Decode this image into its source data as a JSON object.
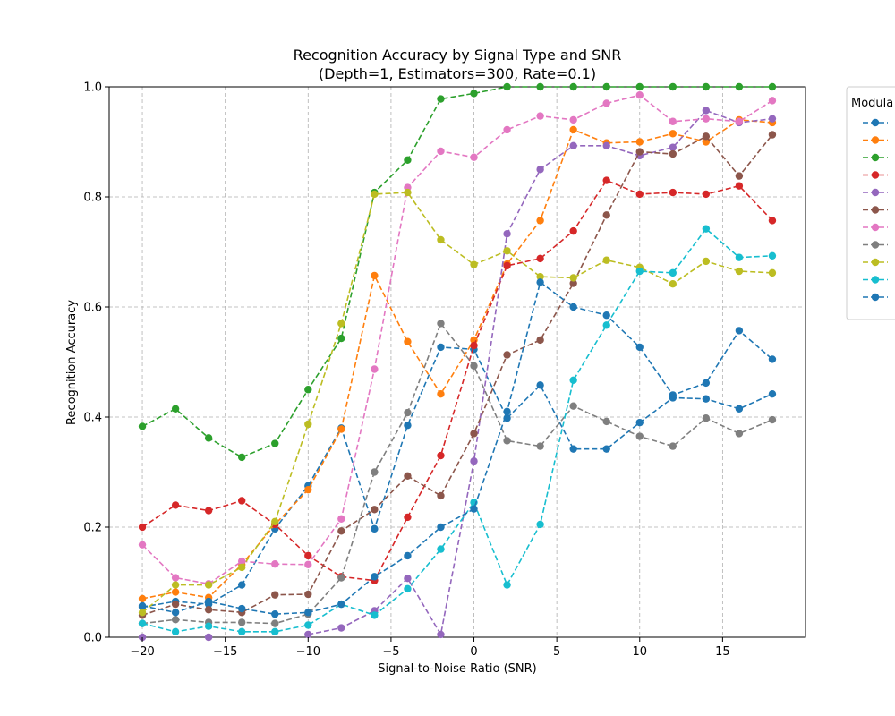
{
  "chart_data": {
    "type": "line",
    "title": "Recognition Accuracy by Signal Type and SNR",
    "subtitle": "(Depth=1, Estimators=300, Rate=0.1)",
    "xlabel": "Signal-to-Noise Ratio (SNR)",
    "ylabel": "Recognition Accuracy",
    "xlim": [
      -22,
      20
    ],
    "ylim": [
      0.0,
      1.0
    ],
    "xticks": [
      -20,
      -15,
      -10,
      -5,
      0,
      5,
      10,
      15
    ],
    "yticks": [
      0.0,
      0.2,
      0.4,
      0.6,
      0.8,
      1.0
    ],
    "xtick_labels": [
      "−20",
      "−15",
      "−10",
      "−5",
      "0",
      "5",
      "10",
      "15"
    ],
    "ytick_labels": [
      "0.0",
      "0.2",
      "0.4",
      "0.6",
      "0.8",
      "1.0"
    ],
    "grid": true,
    "legend": {
      "title": "Modula",
      "placement": "right-outside-top",
      "entries": [
        "",
        "",
        "",
        "",
        "",
        "",
        "",
        "",
        "",
        "",
        ""
      ]
    },
    "x": [
      -20,
      -18,
      -16,
      -14,
      -12,
      -10,
      -8,
      -6,
      -4,
      -2,
      0,
      2,
      4,
      6,
      8,
      10,
      12,
      14,
      16,
      18
    ],
    "series": [
      {
        "color": "#1f77b4",
        "values": [
          0.055,
          0.065,
          0.06,
          0.095,
          0.197,
          0.275,
          0.38,
          0.197,
          0.385,
          0.527,
          0.523,
          0.398,
          0.458,
          0.342,
          0.342,
          0.39,
          0.435,
          0.433,
          0.415,
          0.442
        ]
      },
      {
        "color": "#ff7f0e",
        "values": [
          0.07,
          0.082,
          0.072,
          0.132,
          0.205,
          0.268,
          0.378,
          0.657,
          0.537,
          0.442,
          0.54,
          0.678,
          0.757,
          0.922,
          0.898,
          0.9,
          0.915,
          0.9,
          0.94,
          0.935
        ]
      },
      {
        "color": "#2ca02c",
        "values": [
          0.383,
          0.415,
          0.362,
          0.327,
          0.352,
          0.45,
          0.543,
          0.808,
          0.867,
          0.978,
          0.988,
          1.0,
          1.0,
          1.0,
          1.0,
          1.0,
          1.0,
          1.0,
          1.0,
          1.0
        ]
      },
      {
        "color": "#d62728",
        "values": [
          0.2,
          0.24,
          0.23,
          0.248,
          0.205,
          0.148,
          0.11,
          0.103,
          0.218,
          0.33,
          0.53,
          0.675,
          0.688,
          0.738,
          0.83,
          0.805,
          0.808,
          0.805,
          0.82,
          0.757
        ]
      },
      {
        "color": "#9467bd",
        "values": [
          0.0,
          null,
          0.0,
          null,
          null,
          0.005,
          0.017,
          0.048,
          0.107,
          0.005,
          0.32,
          0.733,
          0.85,
          0.893,
          0.893,
          0.875,
          0.89,
          0.957,
          0.935,
          0.942
        ]
      },
      {
        "color": "#8c564b",
        "values": [
          0.04,
          0.06,
          0.05,
          0.045,
          0.077,
          0.078,
          0.193,
          0.232,
          0.293,
          0.257,
          0.37,
          0.513,
          0.54,
          0.643,
          0.767,
          0.882,
          0.878,
          0.91,
          0.838,
          0.913
        ]
      },
      {
        "color": "#e377c2",
        "values": [
          0.168,
          0.108,
          0.097,
          0.138,
          0.133,
          0.132,
          0.215,
          0.487,
          0.817,
          0.883,
          0.872,
          0.922,
          0.947,
          0.94,
          0.97,
          0.985,
          0.937,
          0.942,
          0.937,
          0.975
        ]
      },
      {
        "color": "#7f7f7f",
        "values": [
          0.025,
          0.032,
          0.027,
          0.027,
          0.025,
          0.042,
          0.108,
          0.3,
          0.408,
          0.57,
          0.493,
          0.357,
          0.347,
          0.42,
          0.392,
          0.365,
          0.347,
          0.398,
          0.37,
          0.395
        ]
      },
      {
        "color": "#bcbd22",
        "values": [
          0.045,
          0.095,
          0.095,
          0.127,
          0.21,
          0.387,
          0.57,
          0.805,
          0.808,
          0.722,
          0.677,
          0.702,
          0.655,
          0.653,
          0.685,
          0.672,
          0.642,
          0.683,
          0.665,
          0.662
        ]
      },
      {
        "color": "#17becf",
        "values": [
          0.025,
          0.01,
          0.02,
          0.01,
          0.01,
          0.022,
          0.06,
          0.04,
          0.088,
          0.16,
          0.245,
          0.095,
          0.205,
          0.467,
          0.567,
          0.665,
          0.662,
          0.742,
          0.69,
          0.693
        ]
      },
      {
        "color": "#1f77b4",
        "values": [
          0.057,
          0.045,
          0.065,
          0.052,
          0.042,
          0.045,
          0.06,
          0.11,
          0.148,
          0.2,
          0.233,
          0.41,
          0.645,
          0.6,
          0.585,
          0.527,
          0.44,
          0.462,
          0.557,
          0.505
        ]
      }
    ]
  }
}
